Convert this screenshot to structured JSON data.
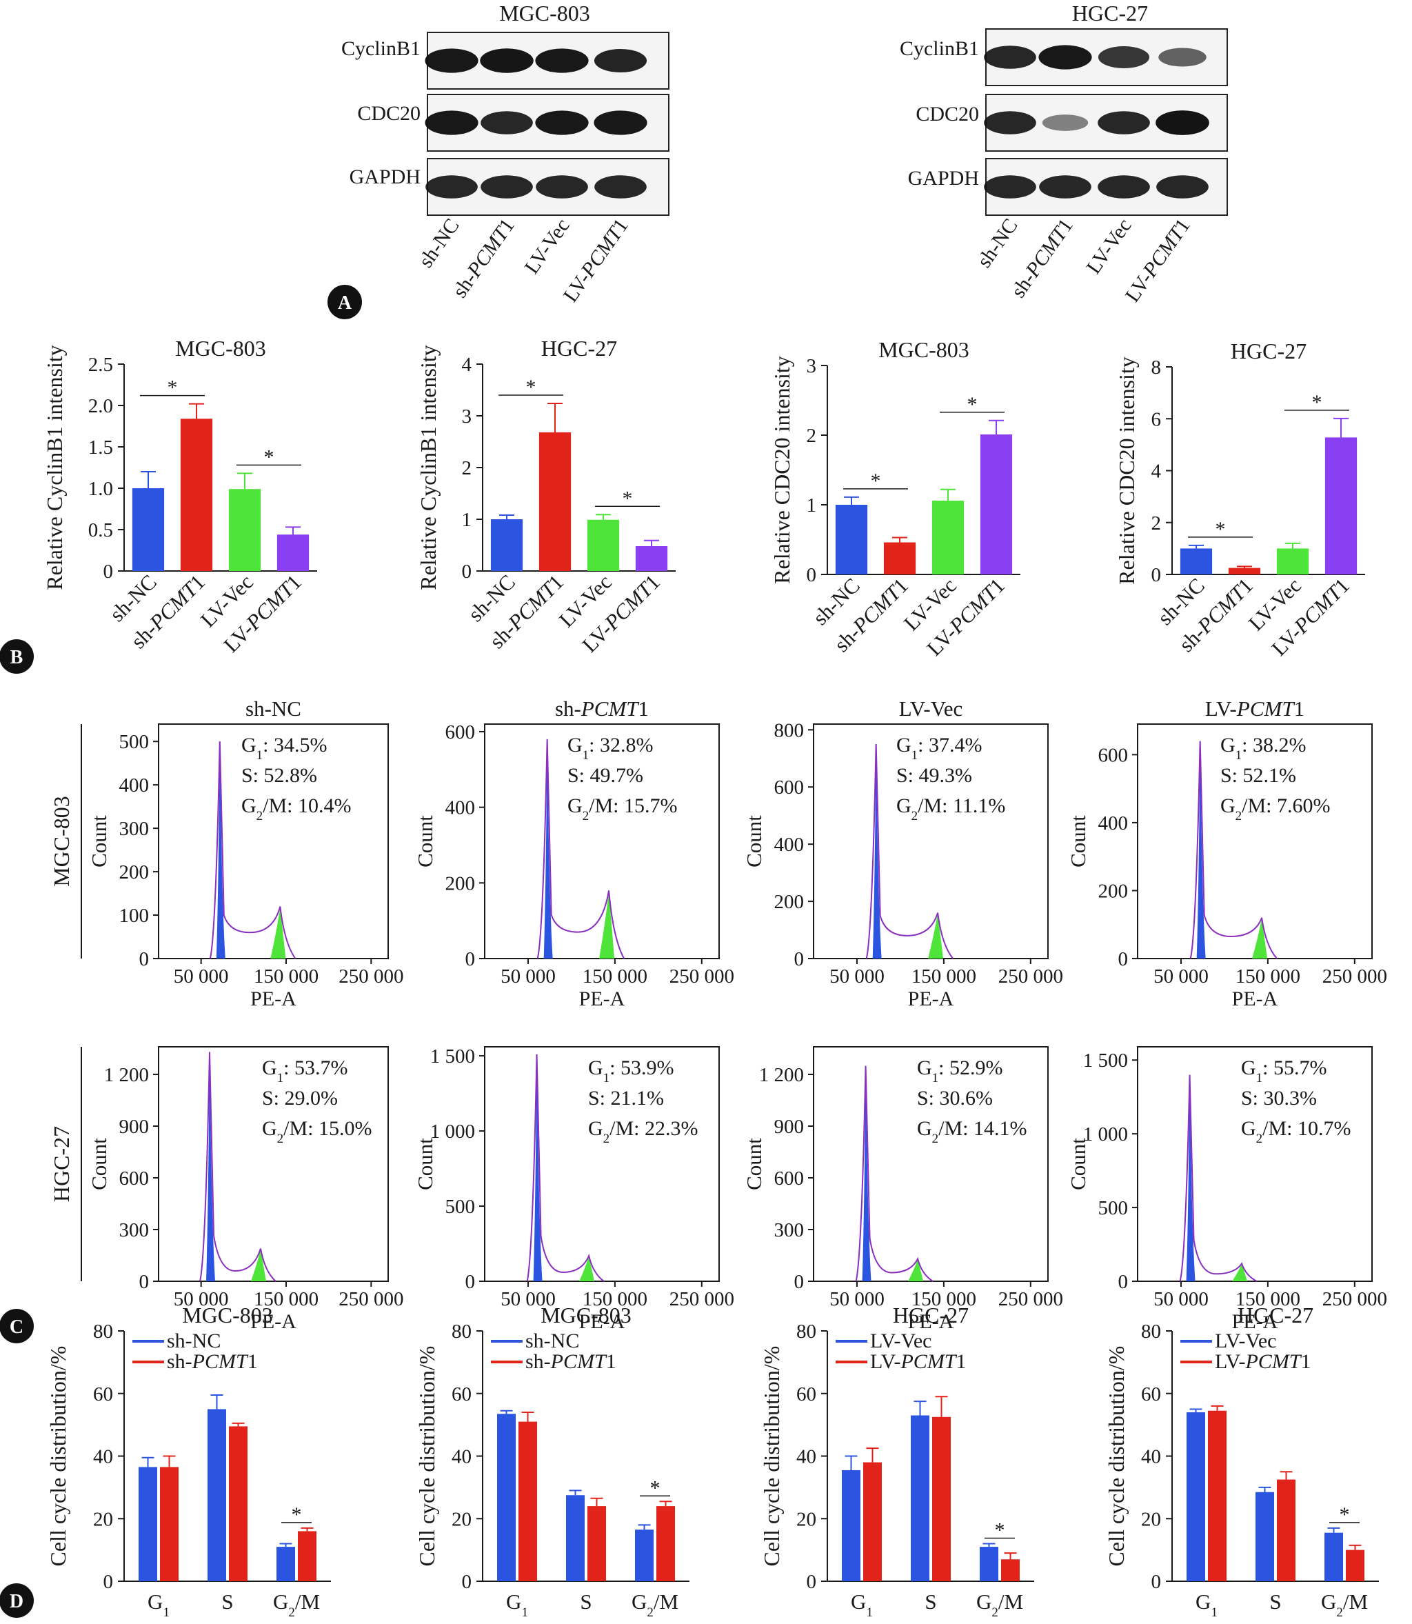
{
  "panel_labels": [
    "A",
    "B",
    "C",
    "D"
  ],
  "colors": {
    "blue": "#2b55e0",
    "red": "#e2231a",
    "green": "#4ee43a",
    "purple": "#8a3ff0",
    "axis": "#1a1a1a"
  },
  "western": {
    "cell_lines": [
      "MGC-803",
      "HGC-27"
    ],
    "proteins": [
      "CyclinB1",
      "CDC20",
      "GAPDH"
    ],
    "lanes": [
      "sh-NC",
      "sh-PCMT1",
      "LV-Vec",
      "LV-PCMT1"
    ],
    "band_intensity": [
      [
        [
          0.95,
          0.97,
          0.95,
          0.88
        ],
        [
          0.95,
          0.85,
          0.95,
          0.95
        ],
        [
          0.85,
          0.85,
          0.85,
          0.85
        ]
      ],
      [
        [
          0.85,
          0.95,
          0.75,
          0.45
        ],
        [
          0.85,
          0.25,
          0.85,
          0.98
        ],
        [
          0.85,
          0.85,
          0.85,
          0.85
        ]
      ]
    ]
  },
  "flow": {
    "rows": [
      "MGC-803",
      "HGC-27"
    ],
    "titles": [
      "sh-NC",
      "sh-PCMT1",
      "LV-Vec",
      "LV-PCMT1"
    ],
    "xlabel": "PE-A",
    "ylabel": "Count",
    "xticks": [
      "50 000",
      "150 000",
      "250 000"
    ],
    "panels": [
      {
        "stats": [
          "G1: 34.5%",
          "S: 52.8%",
          "G2/M: 10.4%"
        ],
        "yticks": [
          "0",
          "100",
          "200",
          "300",
          "400",
          "500"
        ],
        "ymax": 540,
        "g1": 500,
        "g2": 120,
        "plateau": 60
      },
      {
        "stats": [
          "G1: 32.8%",
          "S: 49.7%",
          "G2/M: 15.7%"
        ],
        "yticks": [
          "0",
          "200",
          "400",
          "600"
        ],
        "ymax": 620,
        "g1": 580,
        "g2": 180,
        "plateau": 70
      },
      {
        "stats": [
          "G1: 37.4%",
          "S: 49.3%",
          "G2/M: 11.1%"
        ],
        "yticks": [
          "0",
          "200",
          "400",
          "600",
          "800"
        ],
        "ymax": 820,
        "g1": 750,
        "g2": 160,
        "plateau": 80
      },
      {
        "stats": [
          "G1: 38.2%",
          "S: 52.1%",
          "G2/M: 7.60%"
        ],
        "yticks": [
          "0",
          "200",
          "400",
          "600"
        ],
        "ymax": 690,
        "g1": 640,
        "g2": 120,
        "plateau": 65
      },
      {
        "stats": [
          "G1: 53.7%",
          "S: 29.0%",
          "G2/M: 15.0%"
        ],
        "yticks": [
          "0",
          "300",
          "600",
          "900",
          "1 200"
        ],
        "ymax": 1360,
        "g1": 1330,
        "g2": 190,
        "plateau": 60
      },
      {
        "stats": [
          "G1: 53.9%",
          "S: 21.1%",
          "G2/M: 22.3%"
        ],
        "yticks": [
          "0",
          "500",
          "1 000",
          "1 500"
        ],
        "ymax": 1560,
        "g1": 1510,
        "g2": 170,
        "plateau": 60
      },
      {
        "stats": [
          "G1: 52.9%",
          "S: 30.6%",
          "G2/M: 14.1%"
        ],
        "yticks": [
          "0",
          "300",
          "600",
          "900",
          "1 200"
        ],
        "ymax": 1360,
        "g1": 1250,
        "g2": 130,
        "plateau": 50
      },
      {
        "stats": [
          "G1: 55.7%",
          "S: 30.3%",
          "G2/M: 10.7%"
        ],
        "yticks": [
          "0",
          "500",
          "1 000",
          "1 500"
        ],
        "ymax": 1590,
        "g1": 1400,
        "g2": 120,
        "plateau": 50
      }
    ]
  },
  "chart_data": [
    {
      "panel": "B",
      "type": "bar",
      "title": "MGC-803",
      "ylabel": "Relative CyclinB1 intensity",
      "categories": [
        "sh-NC",
        "sh-PCMT1",
        "LV-Vec",
        "LV-PCMT1"
      ],
      "values": [
        1.0,
        1.84,
        0.99,
        0.44
      ],
      "errors": [
        0.2,
        0.18,
        0.19,
        0.09
      ],
      "ylim": [
        0,
        2.5
      ],
      "yticks": [
        "0",
        "0.5",
        "1.0",
        "1.5",
        "2.0",
        "2.5"
      ],
      "significance": [
        [
          0,
          1
        ],
        [
          2,
          3
        ]
      ]
    },
    {
      "panel": "B",
      "type": "bar",
      "title": "HGC-27",
      "ylabel": "Relative CyclinB1 intensity",
      "categories": [
        "sh-NC",
        "sh-PCMT1",
        "LV-Vec",
        "LV-PCMT1"
      ],
      "values": [
        1.0,
        2.68,
        0.99,
        0.48
      ],
      "errors": [
        0.08,
        0.56,
        0.1,
        0.11
      ],
      "ylim": [
        0,
        4
      ],
      "yticks": [
        "0",
        "1",
        "2",
        "3",
        "4"
      ],
      "significance": [
        [
          0,
          1
        ],
        [
          2,
          3
        ]
      ]
    },
    {
      "panel": "B",
      "type": "bar",
      "title": "MGC-803",
      "ylabel": "Relative CDC20 intensity",
      "categories": [
        "sh-NC",
        "sh-PCMT1",
        "LV-Vec",
        "LV-PCMT1"
      ],
      "values": [
        1.0,
        0.46,
        1.06,
        2.01
      ],
      "errors": [
        0.11,
        0.07,
        0.16,
        0.2
      ],
      "ylim": [
        0,
        3
      ],
      "yticks": [
        "0",
        "1",
        "2",
        "3"
      ],
      "significance": [
        [
          0,
          1
        ],
        [
          2,
          3
        ]
      ]
    },
    {
      "panel": "B",
      "type": "bar",
      "title": "HGC-27",
      "ylabel": "Relative CDC20 intensity",
      "categories": [
        "sh-NC",
        "sh-PCMT1",
        "LV-Vec",
        "LV-PCMT1"
      ],
      "values": [
        1.0,
        0.25,
        1.0,
        5.28
      ],
      "errors": [
        0.12,
        0.06,
        0.2,
        0.73
      ],
      "ylim": [
        0,
        8
      ],
      "yticks": [
        "0",
        "2",
        "4",
        "6",
        "8"
      ],
      "significance": [
        [
          0,
          1
        ],
        [
          2,
          3
        ]
      ]
    },
    {
      "panel": "D",
      "type": "bar",
      "title": "MGC-803",
      "ylabel": "Cell cycle distribution/%",
      "categories": [
        "G1",
        "S",
        "G2/M"
      ],
      "series": [
        {
          "name": "sh-NC",
          "values": [
            36.5,
            55,
            11
          ],
          "errors": [
            3,
            4.5,
            1
          ]
        },
        {
          "name": "sh-PCMT1",
          "values": [
            36.5,
            49.5,
            16
          ],
          "errors": [
            3.5,
            1,
            1
          ]
        }
      ],
      "ylim": [
        0,
        80
      ],
      "yticks": [
        "0",
        "20",
        "40",
        "60",
        "80"
      ],
      "significance": [
        2
      ]
    },
    {
      "panel": "D",
      "type": "bar",
      "title": "MGC-803",
      "ylabel": "Cell cycle distribution/%",
      "categories": [
        "G1",
        "S",
        "G2/M"
      ],
      "series": [
        {
          "name": "sh-NC",
          "values": [
            53.5,
            27.5,
            16.5
          ],
          "errors": [
            1,
            1.5,
            1.5
          ]
        },
        {
          "name": "sh-PCMT1",
          "values": [
            51,
            24,
            24
          ],
          "errors": [
            3,
            2.5,
            1.5
          ]
        }
      ],
      "ylim": [
        0,
        80
      ],
      "yticks": [
        "0",
        "20",
        "40",
        "60",
        "80"
      ],
      "significance": [
        2
      ]
    },
    {
      "panel": "D",
      "type": "bar",
      "title": "HGC-27",
      "ylabel": "Cell cycle distribution/%",
      "categories": [
        "G1",
        "S",
        "G2/M"
      ],
      "series": [
        {
          "name": "LV-Vec",
          "values": [
            35.5,
            53,
            11
          ],
          "errors": [
            4.5,
            4.5,
            1
          ]
        },
        {
          "name": "LV-PCMT1",
          "values": [
            38,
            52.5,
            7
          ],
          "errors": [
            4.5,
            6.5,
            2
          ]
        }
      ],
      "ylim": [
        0,
        80
      ],
      "yticks": [
        "0",
        "20",
        "40",
        "60",
        "80"
      ],
      "significance": [
        2
      ]
    },
    {
      "panel": "D",
      "type": "bar",
      "title": "HGC-27",
      "ylabel": "Cell cycle distribution/%",
      "categories": [
        "G1",
        "S",
        "G2/M"
      ],
      "series": [
        {
          "name": "LV-Vec",
          "values": [
            54,
            28.5,
            15.5
          ],
          "errors": [
            1,
            1.5,
            1.5
          ]
        },
        {
          "name": "LV-PCMT1",
          "values": [
            54.5,
            32.5,
            10
          ],
          "errors": [
            1.5,
            2.5,
            1.5
          ]
        }
      ],
      "ylim": [
        0,
        80
      ],
      "yticks": [
        "0",
        "20",
        "40",
        "60",
        "80"
      ],
      "significance": [
        2
      ]
    }
  ]
}
